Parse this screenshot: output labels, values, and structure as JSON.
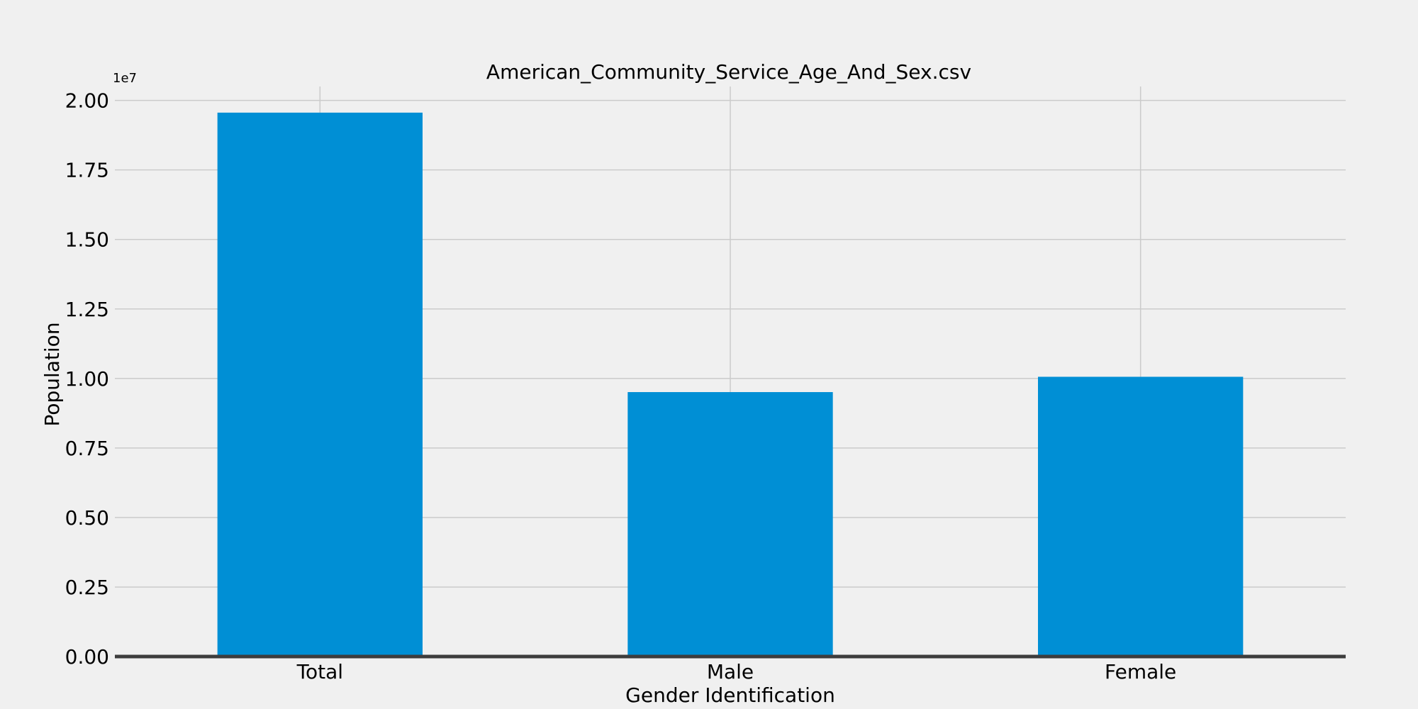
{
  "chart_data": {
    "type": "bar",
    "title": "American_Community_Service_Age_And_Sex.csv",
    "xlabel": "Gender Identification",
    "ylabel": "Population",
    "y_offset_label": "1e7",
    "categories": [
      "Total",
      "Male",
      "Female"
    ],
    "values": [
      19560000,
      9510000,
      10060000
    ],
    "ylim": [
      0,
      20500000
    ],
    "yticks": [
      0,
      2500000,
      5000000,
      7500000,
      10000000,
      12500000,
      15000000,
      17500000,
      20000000
    ],
    "ytick_labels": [
      "0.00",
      "0.25",
      "0.50",
      "0.75",
      "1.00",
      "1.25",
      "1.50",
      "1.75",
      "2.00"
    ],
    "grid": true,
    "colors": {
      "bar": "#008fd5",
      "background": "#f0f0f0",
      "grid": "#cbcbcb",
      "baseline": "#3d3d3d"
    }
  }
}
